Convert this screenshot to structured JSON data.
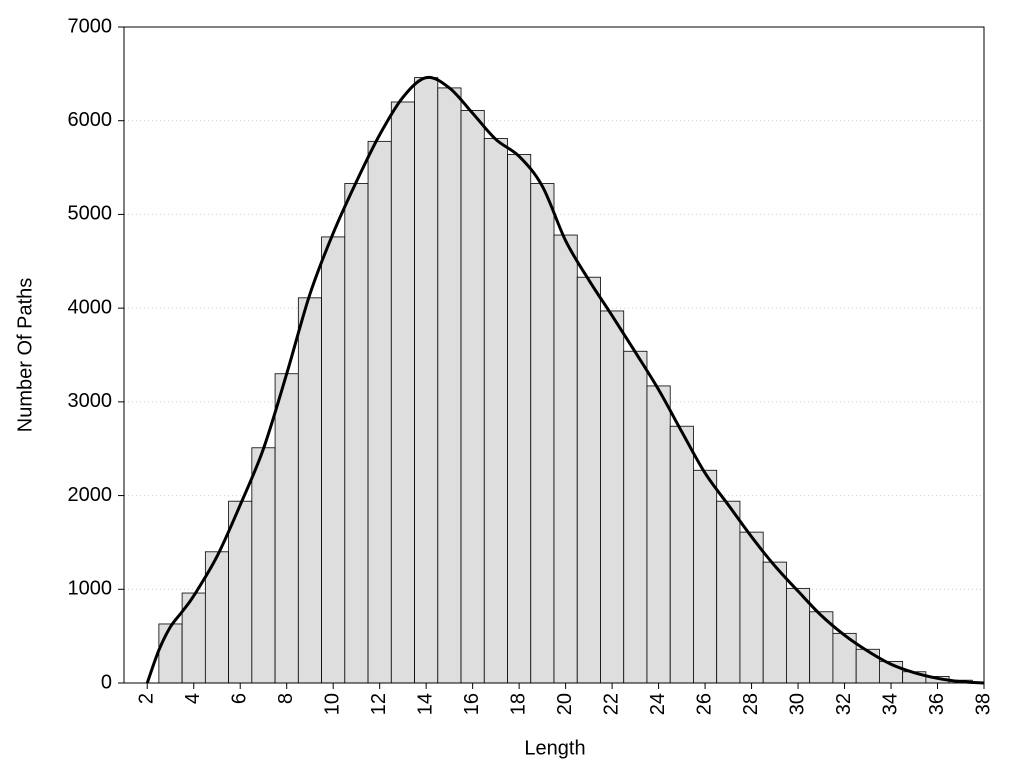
{
  "chart_data": {
    "type": "histogram",
    "xlabel": "Length",
    "ylabel": "Number Of Paths",
    "bins": [
      2.5,
      3.5,
      4.5,
      5.5,
      6.5,
      7.5,
      8.5,
      9.5,
      10.5,
      11.5,
      12.5,
      13.5,
      14.5,
      15.5,
      16.5,
      17.5,
      18.5,
      19.5,
      20.5,
      21.5,
      22.5,
      23.5,
      24.5,
      25.5,
      26.5,
      27.5,
      28.5,
      29.5,
      30.5,
      31.5,
      32.5,
      33.5,
      34.5,
      35.5,
      36.5,
      37.5
    ],
    "values": [
      630,
      960,
      1400,
      1940,
      2510,
      3300,
      4110,
      4760,
      5330,
      5780,
      6200,
      6460,
      6350,
      6110,
      5810,
      5640,
      5330,
      4780,
      4330,
      3970,
      3540,
      3170,
      2740,
      2270,
      1940,
      1610,
      1290,
      1010,
      760,
      530,
      360,
      230,
      120,
      70,
      30
    ],
    "color": "#dedede",
    "curve": {
      "color": "#000000",
      "x": [
        2,
        2.5,
        3,
        3.5,
        4,
        5,
        6,
        7,
        8,
        9,
        10,
        11,
        12,
        13,
        14,
        15,
        16,
        17,
        18,
        19,
        20,
        21,
        22,
        23,
        24,
        25,
        26,
        27,
        28,
        29,
        30,
        31,
        32,
        33,
        34,
        35,
        36,
        37,
        38
      ],
      "values": [
        0,
        350,
        600,
        760,
        930,
        1350,
        1900,
        2500,
        3300,
        4150,
        4800,
        5350,
        5850,
        6250,
        6460,
        6350,
        6080,
        5800,
        5620,
        5300,
        4720,
        4300,
        3920,
        3530,
        3130,
        2680,
        2240,
        1900,
        1560,
        1250,
        980,
        720,
        510,
        340,
        200,
        110,
        50,
        15,
        0
      ]
    },
    "xlim": [
      1,
      38
    ],
    "ylim": [
      0,
      7000
    ],
    "xticks": [
      2,
      4,
      6,
      8,
      10,
      12,
      14,
      16,
      18,
      20,
      22,
      24,
      26,
      28,
      30,
      32,
      34,
      36,
      38
    ],
    "yticks": [
      0,
      1000,
      2000,
      3000,
      4000,
      5000,
      6000,
      7000
    ],
    "grid": true
  }
}
